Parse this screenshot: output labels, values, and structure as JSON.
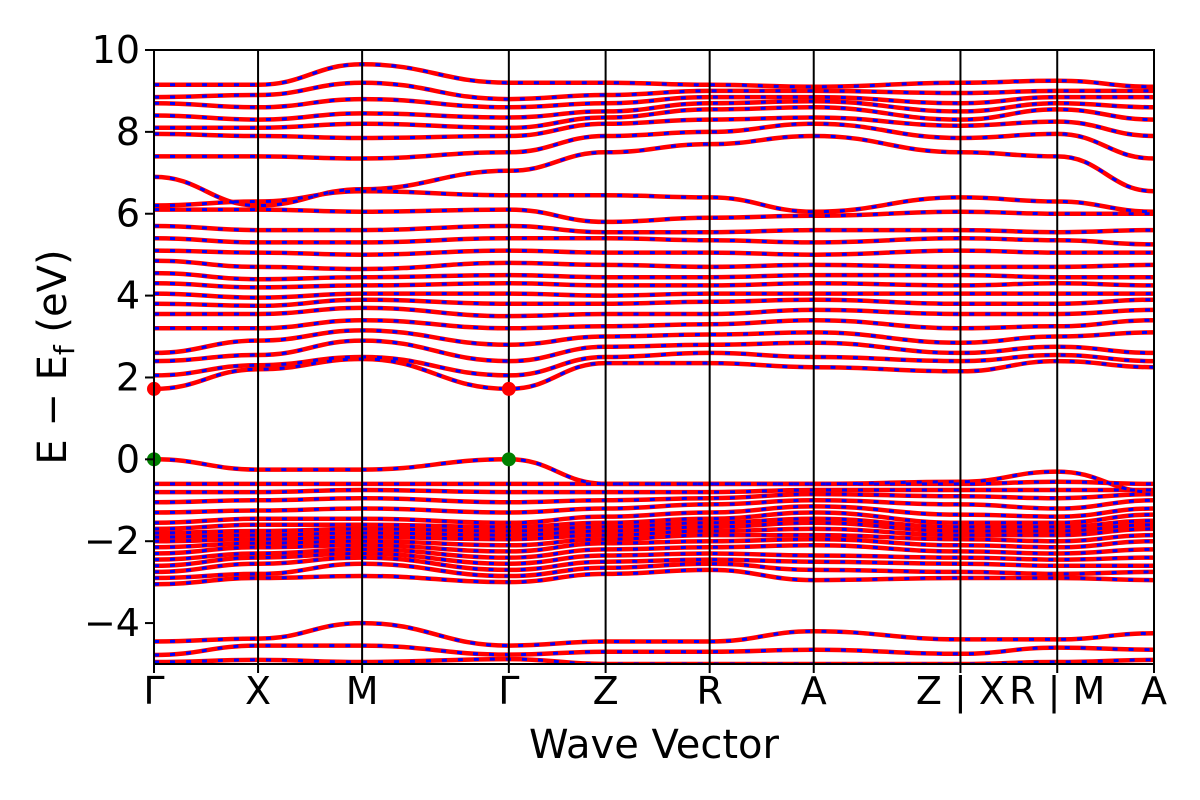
{
  "chart_data": {
    "type": "line",
    "title": "",
    "xlabel": "Wave Vector",
    "ylabel": "E − E",
    "ylabel_sub": "f",
    "ylabel_unit": " (eV)",
    "ylim": [
      -5,
      10
    ],
    "yticks": [
      -4,
      -2,
      0,
      2,
      4,
      6,
      8,
      10
    ],
    "ytick_labels": [
      "−4",
      "−2",
      "0",
      "2",
      "4",
      "6",
      "8",
      "10"
    ],
    "kpath": [
      {
        "label": "Γ",
        "x": 0.0
      },
      {
        "label": "X",
        "x": 1.0
      },
      {
        "label": "M",
        "x": 2.0
      },
      {
        "label": "Γ",
        "x": 3.41
      },
      {
        "label": "Z",
        "x": 4.34
      },
      {
        "label": "R",
        "x": 5.34
      },
      {
        "label": "A",
        "x": 6.34
      },
      {
        "label": "Z | X",
        "x": 7.75
      },
      {
        "label": "R | M",
        "x": 8.68
      },
      {
        "label": "A",
        "x": 9.61
      }
    ],
    "grid": false,
    "legend": "none",
    "colors": {
      "spin_up": "#0000ff",
      "spin_down": "#ff0000",
      "vbm": "#008000",
      "cbm": "#ff0000",
      "frame": "#000000"
    },
    "band_edge_markers": [
      {
        "name": "VBM",
        "x": 0.0,
        "y": 0.0,
        "color": "#008000"
      },
      {
        "name": "VBM",
        "x": 3.41,
        "y": 0.0,
        "color": "#008000"
      },
      {
        "name": "CBM",
        "x": 0.0,
        "y": 1.72,
        "color": "#ff0000"
      },
      {
        "name": "CBM",
        "x": 3.41,
        "y": 1.72,
        "color": "#ff0000"
      }
    ],
    "bands_at_kpoints": [
      [
        -4.95,
        -4.9,
        -4.95,
        -4.88,
        -5.0,
        -5.0,
        -5.0,
        -5.0,
        -4.95,
        -4.9
      ],
      [
        -4.78,
        -4.55,
        -4.55,
        -4.77,
        -4.7,
        -4.7,
        -4.65,
        -4.75,
        -4.6,
        -4.65
      ],
      [
        -4.45,
        -4.38,
        -4.0,
        -4.55,
        -4.45,
        -4.45,
        -4.2,
        -4.4,
        -4.4,
        -4.25
      ],
      [
        -3.05,
        -2.9,
        -2.85,
        -3.0,
        -2.8,
        -2.7,
        -2.95,
        -2.9,
        -2.9,
        -2.95
      ],
      [
        -2.9,
        -2.8,
        -2.55,
        -2.85,
        -2.65,
        -2.55,
        -2.7,
        -2.75,
        -2.8,
        -2.75
      ],
      [
        -2.75,
        -2.55,
        -2.4,
        -2.7,
        -2.5,
        -2.45,
        -2.5,
        -2.55,
        -2.6,
        -2.6
      ],
      [
        -2.6,
        -2.4,
        -2.3,
        -2.55,
        -2.35,
        -2.3,
        -2.35,
        -2.4,
        -2.45,
        -2.4
      ],
      [
        -2.45,
        -2.3,
        -2.2,
        -2.4,
        -2.2,
        -2.15,
        -2.1,
        -2.25,
        -2.3,
        -2.2
      ],
      [
        -2.3,
        -2.15,
        -2.1,
        -2.25,
        -2.05,
        -2.0,
        -1.95,
        -2.1,
        -2.15,
        -2.0
      ],
      [
        -2.15,
        -2.05,
        -2.0,
        -2.1,
        -1.95,
        -1.85,
        -1.85,
        -1.95,
        -2.0,
        -1.85
      ],
      [
        -2.0,
        -1.95,
        -1.9,
        -1.95,
        -1.85,
        -1.75,
        -1.7,
        -1.85,
        -1.85,
        -1.7
      ],
      [
        -1.9,
        -1.85,
        -1.8,
        -1.85,
        -1.75,
        -1.65,
        -1.55,
        -1.75,
        -1.75,
        -1.6
      ],
      [
        -1.8,
        -1.75,
        -1.7,
        -1.75,
        -1.65,
        -1.55,
        -1.45,
        -1.65,
        -1.65,
        -1.5
      ],
      [
        -1.7,
        -1.6,
        -1.6,
        -1.65,
        -1.55,
        -1.45,
        -1.3,
        -1.55,
        -1.55,
        -1.35
      ],
      [
        -1.55,
        -1.45,
        -1.45,
        -1.55,
        -1.4,
        -1.3,
        -1.15,
        -1.35,
        -1.4,
        -1.2
      ],
      [
        -1.3,
        -1.25,
        -1.2,
        -1.3,
        -1.2,
        -1.1,
        -1.0,
        -1.1,
        -1.2,
        -1.0
      ],
      [
        -1.05,
        -1.0,
        -0.95,
        -1.05,
        -1.0,
        -0.95,
        -0.85,
        -0.9,
        -0.95,
        -0.85
      ],
      [
        -0.8,
        -0.8,
        -0.75,
        -0.8,
        -0.8,
        -0.8,
        -0.75,
        -0.75,
        -0.75,
        -0.75
      ],
      [
        -0.6,
        -0.6,
        -0.6,
        -0.6,
        -0.6,
        -0.6,
        -0.6,
        -0.6,
        -0.55,
        -0.6
      ],
      [
        0.0,
        -0.25,
        -0.25,
        0.0,
        -0.6,
        -0.6,
        -0.6,
        -0.55,
        -0.3,
        -0.8
      ],
      [
        1.72,
        2.2,
        2.45,
        1.72,
        2.35,
        2.35,
        2.25,
        2.15,
        2.4,
        2.25
      ],
      [
        2.05,
        2.3,
        2.5,
        2.05,
        2.5,
        2.6,
        2.5,
        2.4,
        2.55,
        2.4
      ],
      [
        2.4,
        2.55,
        2.9,
        2.4,
        2.75,
        2.8,
        2.85,
        2.6,
        2.75,
        2.6
      ],
      [
        2.6,
        2.9,
        3.15,
        2.8,
        3.0,
        3.05,
        3.1,
        2.85,
        3.0,
        3.1
      ],
      [
        3.2,
        3.2,
        3.4,
        3.2,
        3.25,
        3.3,
        3.4,
        3.2,
        3.25,
        3.4
      ],
      [
        3.55,
        3.55,
        3.7,
        3.5,
        3.55,
        3.55,
        3.65,
        3.55,
        3.55,
        3.65
      ],
      [
        3.8,
        3.75,
        3.9,
        3.8,
        3.8,
        3.85,
        3.9,
        3.8,
        3.8,
        3.9
      ],
      [
        4.05,
        3.95,
        4.05,
        4.05,
        4.0,
        4.05,
        4.05,
        4.05,
        4.05,
        4.05
      ],
      [
        4.3,
        4.2,
        4.25,
        4.3,
        4.25,
        4.25,
        4.3,
        4.25,
        4.3,
        4.25
      ],
      [
        4.55,
        4.4,
        4.45,
        4.5,
        4.45,
        4.45,
        4.5,
        4.5,
        4.45,
        4.45
      ],
      [
        4.85,
        4.7,
        4.65,
        4.8,
        4.75,
        4.7,
        4.75,
        4.7,
        4.7,
        4.75
      ],
      [
        5.1,
        5.05,
        5.0,
        5.1,
        5.05,
        5.05,
        5.0,
        5.1,
        5.05,
        5.05
      ],
      [
        5.4,
        5.3,
        5.3,
        5.4,
        5.4,
        5.35,
        5.3,
        5.4,
        5.35,
        5.25
      ],
      [
        5.7,
        5.6,
        5.6,
        5.7,
        5.55,
        5.55,
        5.6,
        5.6,
        5.55,
        5.6
      ],
      [
        6.1,
        6.1,
        6.05,
        6.1,
        5.8,
        5.9,
        5.95,
        6.05,
        6.0,
        6.0
      ],
      [
        6.2,
        6.3,
        6.55,
        6.45,
        6.45,
        6.4,
        6.05,
        6.4,
        6.3,
        6.05
      ],
      [
        6.9,
        6.2,
        6.6,
        7.05,
        7.5,
        7.7,
        7.9,
        7.5,
        7.4,
        6.55
      ],
      [
        7.4,
        7.4,
        7.35,
        7.5,
        7.9,
        8.0,
        8.2,
        7.85,
        7.95,
        7.35
      ],
      [
        7.95,
        7.9,
        7.85,
        7.9,
        8.2,
        8.3,
        8.35,
        8.15,
        8.25,
        7.9
      ],
      [
        8.1,
        8.1,
        8.2,
        8.1,
        8.35,
        8.55,
        8.6,
        8.3,
        8.55,
        8.3
      ],
      [
        8.4,
        8.3,
        8.45,
        8.35,
        8.5,
        8.7,
        8.75,
        8.5,
        8.7,
        8.6
      ],
      [
        8.7,
        8.6,
        8.8,
        8.6,
        8.7,
        8.85,
        8.85,
        8.7,
        8.85,
        8.85
      ],
      [
        8.85,
        8.9,
        9.2,
        8.8,
        8.9,
        9.0,
        9.0,
        8.95,
        9.0,
        9.0
      ],
      [
        9.15,
        9.15,
        9.65,
        9.2,
        9.2,
        9.15,
        9.1,
        9.2,
        9.25,
        9.1
      ]
    ]
  }
}
